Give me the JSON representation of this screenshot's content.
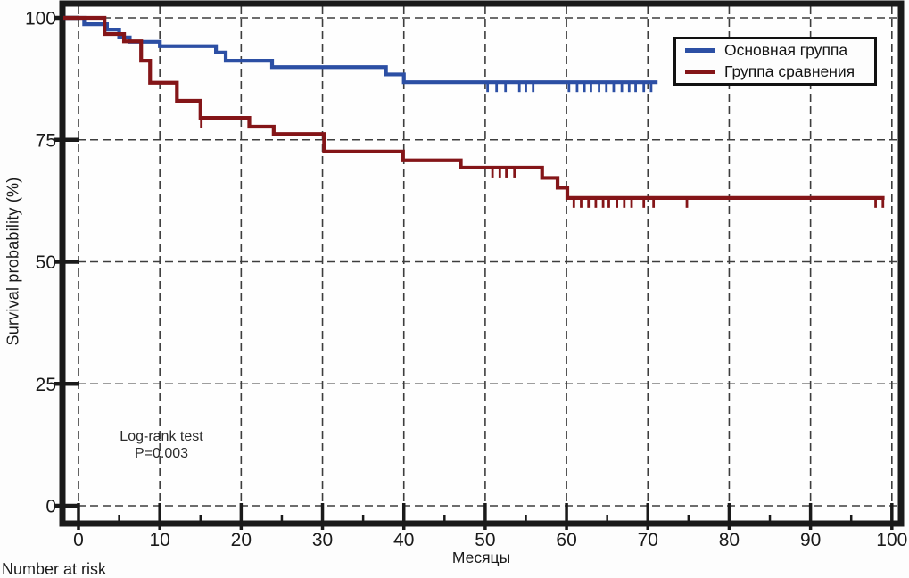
{
  "figure": {
    "footer_note": "Number at risk"
  },
  "chart_data": {
    "type": "line",
    "variant": "kaplan_meier_step_survival",
    "title": "",
    "xlabel": "Месяцы",
    "ylabel": "Survival probability (%)",
    "xlim": [
      0,
      100
    ],
    "ylim": [
      0,
      100
    ],
    "grid": {
      "style": "dashed",
      "x_at": [
        0,
        10,
        20,
        30,
        40,
        50,
        60,
        70,
        80,
        90,
        100
      ],
      "y_at": [
        0,
        25,
        50,
        75,
        100
      ]
    },
    "x_ticks_major": [
      0,
      10,
      20,
      30,
      40,
      50,
      60,
      70,
      80,
      90,
      100
    ],
    "x_ticks_minor": [
      5,
      15,
      25,
      35,
      45,
      55,
      65,
      75,
      85,
      95
    ],
    "y_ticks": [
      0,
      25,
      50,
      75,
      100
    ],
    "annotation_lines": [
      "Log-rank test",
      "P=0.003"
    ],
    "legend": {
      "position": "top-right",
      "entries": [
        {
          "label": "Основная группа",
          "color": "#2c4fa4"
        },
        {
          "label": "Группа сравнения",
          "color": "#841518"
        }
      ]
    },
    "series": [
      {
        "name": "Основная группа",
        "color": "#2c4fa4",
        "steps": [
          [
            0,
            100
          ],
          [
            0.7,
            98.7
          ],
          [
            3.5,
            97.6
          ],
          [
            5.0,
            96.0
          ],
          [
            6.3,
            95.1
          ],
          [
            10.0,
            94.2
          ],
          [
            16.9,
            92.9
          ],
          [
            18.1,
            91.2
          ],
          [
            23.8,
            89.9
          ],
          [
            37.8,
            88.4
          ],
          [
            40.0,
            86.8
          ]
        ],
        "end_x": 71.2,
        "censor_marks": [
          50.3,
          51.4,
          52.5,
          54.2,
          55.0,
          55.9,
          60.3,
          61.3,
          62.2,
          63.0,
          64.0,
          64.9,
          65.8,
          66.8,
          67.7,
          68.5,
          69.5,
          70.4
        ]
      },
      {
        "name": "Группа сравнения",
        "color": "#841518",
        "steps": [
          [
            0,
            100
          ],
          [
            3.2,
            96.7
          ],
          [
            5.6,
            95.2
          ],
          [
            7.7,
            91.2
          ],
          [
            8.8,
            86.7
          ],
          [
            12.1,
            83.0
          ],
          [
            15.0,
            79.5
          ],
          [
            21.0,
            77.7
          ],
          [
            24.0,
            76.2
          ],
          [
            30.2,
            72.6
          ],
          [
            39.9,
            70.8
          ],
          [
            47.0,
            69.3
          ],
          [
            57.0,
            67.2
          ],
          [
            58.9,
            65.2
          ],
          [
            60.1,
            63.1
          ]
        ],
        "end_x": 99.1,
        "censor_marks": [
          15.1,
          50.9,
          51.8,
          52.6,
          53.6,
          60.9,
          61.8,
          62.7,
          63.6,
          64.5,
          65.2,
          66.2,
          67.1,
          68.0,
          69.5,
          70.7,
          74.8,
          98.0,
          98.9
        ]
      }
    ]
  }
}
